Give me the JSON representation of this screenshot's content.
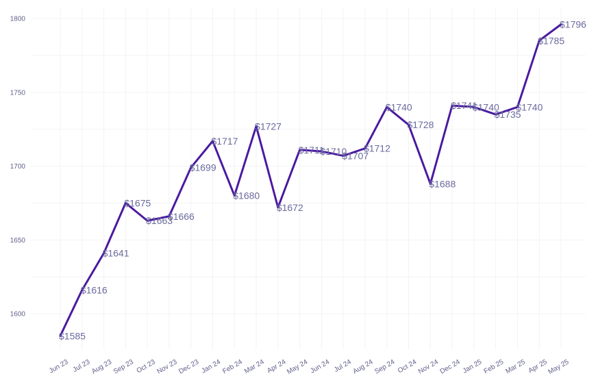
{
  "chart_data": {
    "type": "line",
    "categories": [
      "Jun 23",
      "Jul 23",
      "Aug 23",
      "Sep 23",
      "Oct 23",
      "Nov 23",
      "Dec 23",
      "Jan 24",
      "Feb 24",
      "Mar 24",
      "Apr 24",
      "May 24",
      "Jun 24",
      "Jul 24",
      "Aug 24",
      "Sep 24",
      "Oct 24",
      "Nov 24",
      "Dec 24",
      "Jan 25",
      "Feb 25",
      "Mar 25",
      "Apr 25",
      "May 25"
    ],
    "values": [
      1585,
      1616,
      1641,
      1675,
      1663,
      1666,
      1699,
      1717,
      1680,
      1727,
      1672,
      1711,
      1710,
      1707,
      1712,
      1740,
      1728,
      1688,
      1741,
      1740,
      1735,
      1740,
      1785,
      1796
    ],
    "labels": [
      "$1585",
      "$1616",
      "$1641",
      "$1675",
      "$1663",
      "$1666",
      "$1699",
      "$1717",
      "$1680",
      "$1727",
      "$1672",
      "$1711",
      "$1710",
      "$1707",
      "$1712",
      "$1740",
      "$1728",
      "$1688",
      "$1741",
      "$1740",
      "$1735",
      "$1740",
      "$1785",
      "$1796"
    ],
    "yticks": [
      "1600",
      "1650",
      "1700",
      "1750",
      "1800"
    ],
    "ylim": [
      1575,
      1806
    ],
    "title": "",
    "xlabel": "",
    "ylabel": "",
    "grid": true,
    "line_color": "#4a1aa0"
  }
}
